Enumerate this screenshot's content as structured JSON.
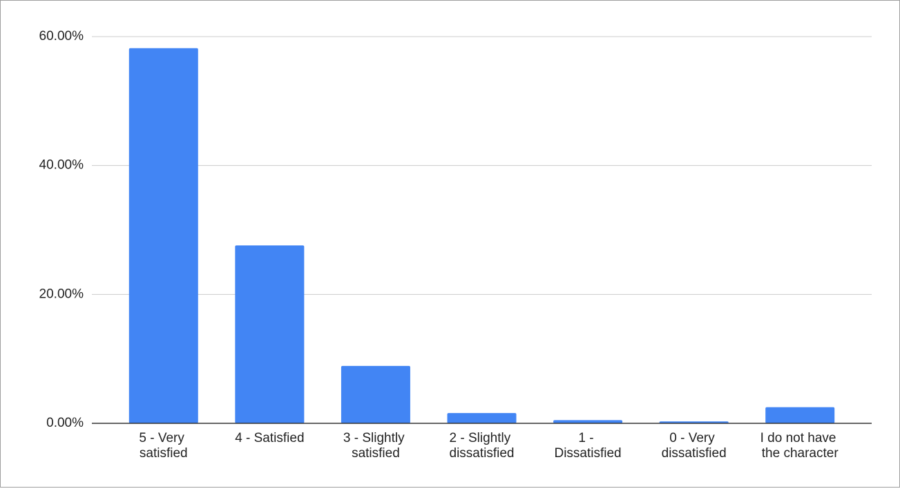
{
  "chart_data": {
    "type": "bar",
    "categories": [
      "5 - Very satisfied",
      "4 - Satisfied",
      "3 - Slightly satisfied",
      "2 - Slightly dissatisfied",
      "1 - Dissatisfied",
      "0 - Very dissatisfied",
      "I do not have the character"
    ],
    "values": [
      58.2,
      27.6,
      8.9,
      1.6,
      0.5,
      0.3,
      2.5
    ],
    "color": "#4285f4",
    "ylim": [
      0,
      60
    ],
    "yticks": [
      {
        "value": 0,
        "label": "0.00%"
      },
      {
        "value": 20,
        "label": "20.00%"
      },
      {
        "value": 40,
        "label": "40.00%"
      },
      {
        "value": 60,
        "label": "60.00%"
      }
    ],
    "grid": true
  }
}
